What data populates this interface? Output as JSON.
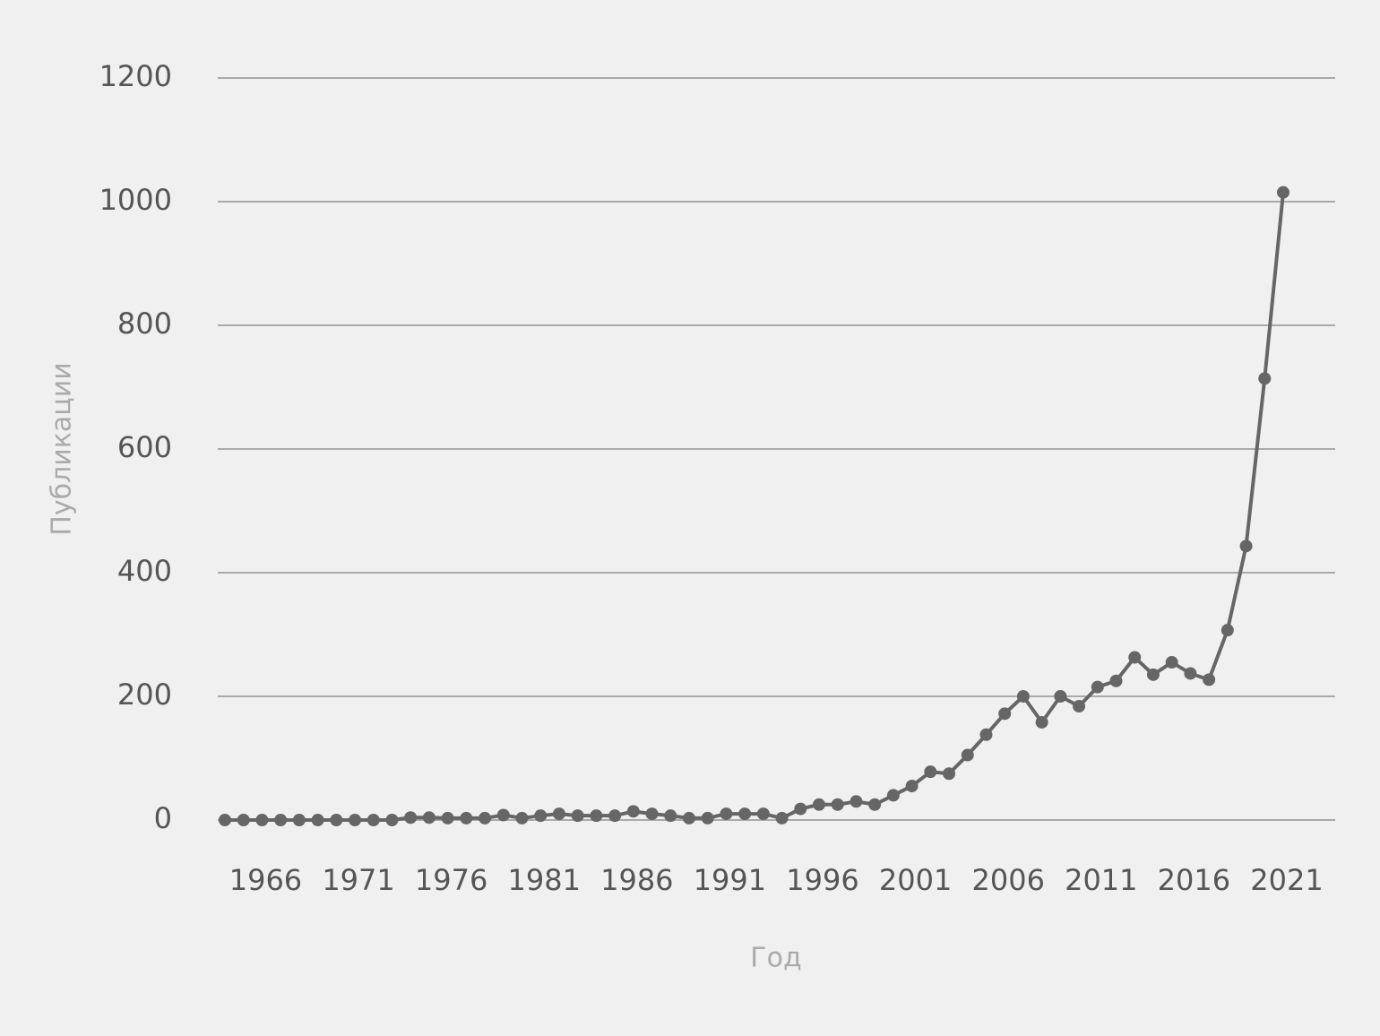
{
  "chart_data": {
    "type": "line",
    "x_label": "Год",
    "y_label": "Публикации",
    "categories": [
      null,
      null,
      "1966",
      null,
      null,
      null,
      null,
      "1971",
      null,
      null,
      null,
      null,
      "1976",
      null,
      null,
      null,
      null,
      "1981",
      null,
      null,
      null,
      null,
      "1986",
      null,
      null,
      null,
      null,
      "1991",
      null,
      null,
      null,
      null,
      "1996",
      null,
      null,
      null,
      null,
      "2001",
      null,
      null,
      null,
      null,
      "2006",
      null,
      null,
      null,
      null,
      "2011",
      null,
      null,
      null,
      null,
      "2016",
      null,
      null,
      null,
      null,
      "2021"
    ],
    "series": [
      {
        "name": "Публикации",
        "color": "#666666",
        "values": [
          0,
          0,
          0,
          0,
          0,
          0,
          0,
          0,
          0,
          0,
          4,
          4,
          3,
          3,
          3,
          8,
          3,
          7,
          10,
          7,
          7,
          7,
          14,
          10,
          7,
          3,
          3,
          10,
          10,
          10,
          3,
          18,
          25,
          25,
          30,
          25,
          40,
          55,
          78,
          75,
          105,
          138,
          172,
          200,
          158,
          200,
          184,
          215,
          225,
          263,
          235,
          255,
          237,
          227,
          307,
          443,
          714,
          1015
        ]
      }
    ],
    "ylim": [
      0,
      1200
    ],
    "yticks": [
      0,
      200,
      400,
      600,
      800,
      1000,
      1200
    ],
    "grid": true
  }
}
